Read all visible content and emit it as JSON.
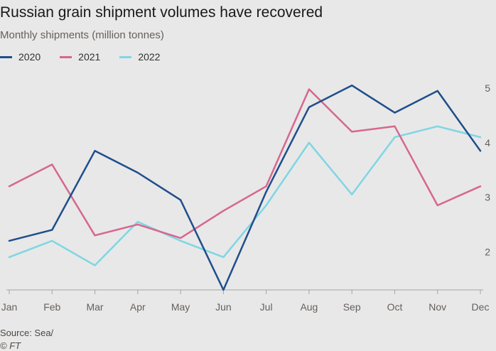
{
  "title": "Russian grain shipment volumes have recovered",
  "subtitle": "Monthly shipments (million tonnes)",
  "source": "Source: Sea/",
  "copyright": "© FT",
  "colors": {
    "background": "#e8e8e8",
    "axis": "#a7a39f",
    "tick_text": "#66605c"
  },
  "chart_data": {
    "type": "line",
    "title": "Russian grain shipment volumes have recovered",
    "subtitle": "Monthly shipments (million tonnes)",
    "xlabel": "",
    "ylabel": "",
    "categories": [
      "Jan",
      "Feb",
      "Mar",
      "Apr",
      "May",
      "Jun",
      "Jul",
      "Aug",
      "Sep",
      "Oct",
      "Nov",
      "Dec"
    ],
    "ylim": [
      1.3,
      5.3
    ],
    "yticks": [
      2,
      3,
      4,
      5
    ],
    "grid": false,
    "legend": "top-left",
    "y_axis_position": "right",
    "series": [
      {
        "name": "2020",
        "color": "#1f4e8c",
        "values": [
          2.2,
          2.4,
          3.85,
          3.45,
          2.95,
          1.3,
          3.1,
          4.65,
          5.05,
          4.55,
          4.95,
          3.85
        ]
      },
      {
        "name": "2021",
        "color": "#d6678f",
        "values": [
          3.2,
          3.6,
          2.3,
          2.5,
          2.25,
          2.75,
          3.2,
          4.98,
          4.2,
          4.3,
          2.85,
          3.2
        ]
      },
      {
        "name": "2022",
        "color": "#7fd6e3",
        "values": [
          1.9,
          2.2,
          1.75,
          2.55,
          2.2,
          1.9,
          2.85,
          4.0,
          3.05,
          4.1,
          4.3,
          4.1
        ]
      }
    ]
  }
}
